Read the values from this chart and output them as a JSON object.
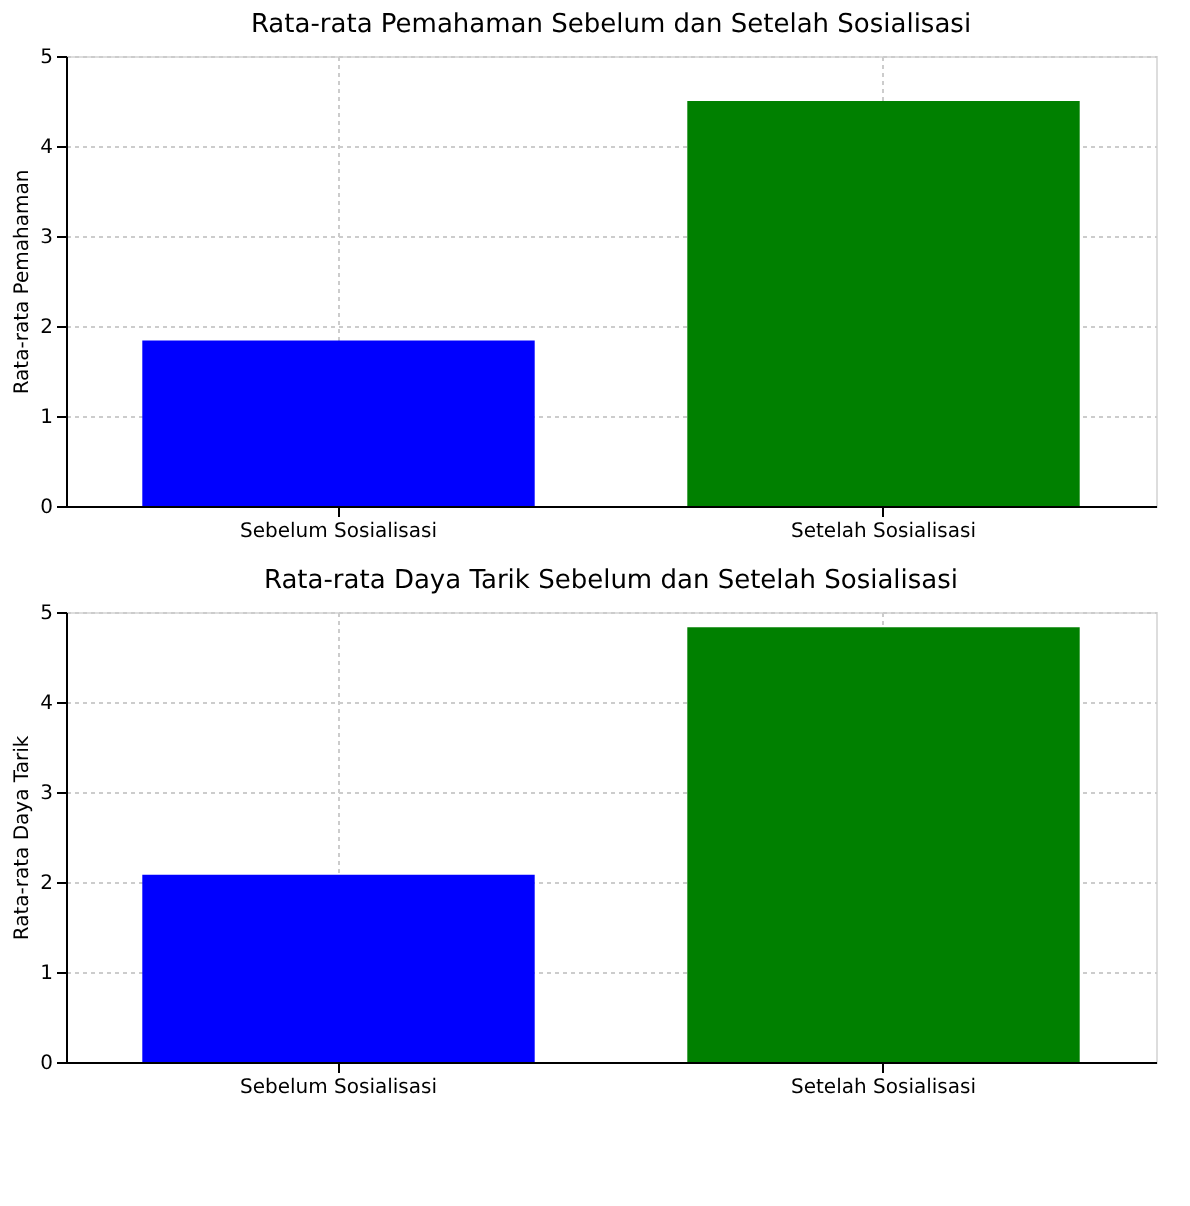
{
  "chart_data": [
    {
      "type": "bar",
      "title": "Rata-rata Pemahaman Sebelum dan Setelah Sosialisasi",
      "ylabel": "Rata-rata Pemahaman",
      "categories": [
        "Sebelum Sosialisasi",
        "Setelah Sosialisasi"
      ],
      "values": [
        1.84,
        4.5
      ],
      "colors": [
        "#0000ff",
        "#008000"
      ],
      "ylim": [
        0,
        5
      ],
      "yticks": [
        0,
        1,
        2,
        3,
        4,
        5
      ],
      "grid": true
    },
    {
      "type": "bar",
      "title": "Rata-rata Daya Tarik Sebelum dan Setelah Sosialisasi",
      "ylabel": "Rata-rata Daya Tarik",
      "categories": [
        "Sebelum Sosialisasi",
        "Setelah Sosialisasi"
      ],
      "values": [
        2.08,
        4.83
      ],
      "colors": [
        "#0000ff",
        "#008000"
      ],
      "ylim": [
        0,
        5
      ],
      "yticks": [
        0,
        1,
        2,
        3,
        4,
        5
      ],
      "grid": true
    }
  ]
}
